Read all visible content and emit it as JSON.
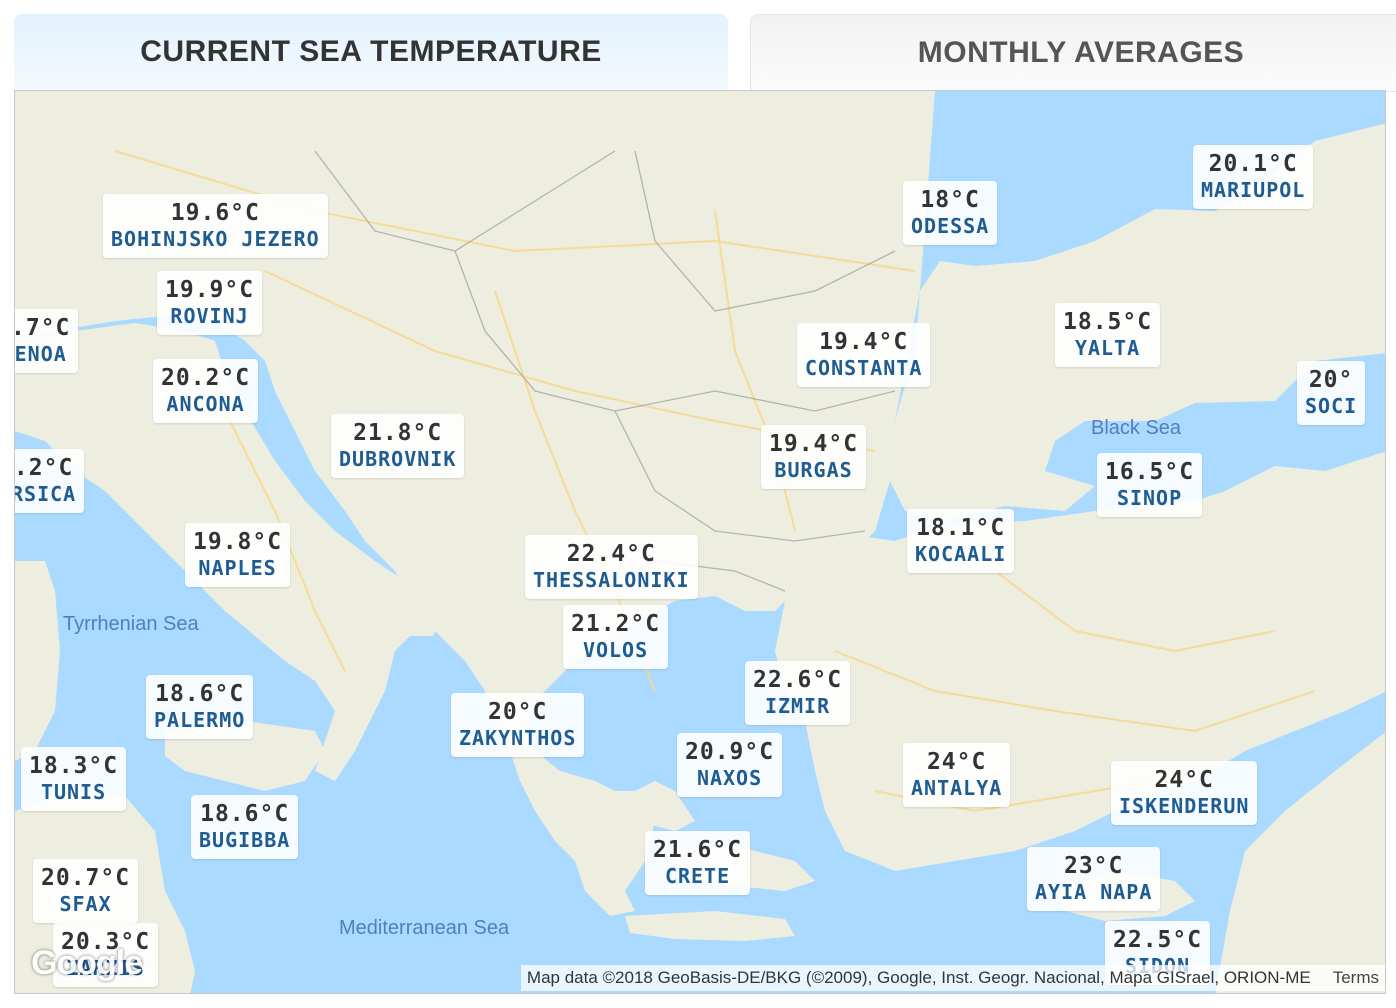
{
  "tabs": {
    "current": "CURRENT SEA TEMPERATURE",
    "monthly": "MONTHLY AVERAGES"
  },
  "map": {
    "sea_labels": {
      "black_sea": "Black Sea",
      "tyrrhenian": "Tyrrhenian Sea",
      "mediterranean": "Mediterranean Sea"
    },
    "markers": [
      {
        "temp": "19.6°C",
        "city": "BOHINJSKO JEZERO"
      },
      {
        "temp": "19.9°C",
        "city": "ROVINJ"
      },
      {
        "temp": "20.2°C",
        "city": "ANCONA"
      },
      {
        "temp": "21.8°C",
        "city": "DUBROVNIK"
      },
      {
        "temp": "19.8°C",
        "city": "NAPLES"
      },
      {
        "temp": "18.6°C",
        "city": "PALERMO"
      },
      {
        "temp": "18.3°C",
        "city": "TUNIS"
      },
      {
        "temp": "18.6°C",
        "city": "BUGIBBA"
      },
      {
        "temp": "20.7°C",
        "city": "SFAX"
      },
      {
        "temp": "20.3°C",
        "city": "ZARZIS"
      },
      {
        "temp": ".7°C",
        "city": "ENOA"
      },
      {
        "temp": ".2°C",
        "city": "RSICA"
      },
      {
        "temp": "22.4°C",
        "city": "THESSALONIKI"
      },
      {
        "temp": "21.2°C",
        "city": "VOLOS"
      },
      {
        "temp": "20°C",
        "city": "ZAKYNTHOS"
      },
      {
        "temp": "20.9°C",
        "city": "NAXOS"
      },
      {
        "temp": "21.6°C",
        "city": "CRETE"
      },
      {
        "temp": "22.6°C",
        "city": "IZMIR"
      },
      {
        "temp": "24°C",
        "city": "ANTALYA"
      },
      {
        "temp": "24°C",
        "city": "ISKENDERUN"
      },
      {
        "temp": "23°C",
        "city": "AYIA NAPA"
      },
      {
        "temp": "22.5°C",
        "city": "SIDON"
      },
      {
        "temp": "18°C",
        "city": "ODESSA"
      },
      {
        "temp": "19.4°C",
        "city": "CONSTANTA"
      },
      {
        "temp": "19.4°C",
        "city": "BURGAS"
      },
      {
        "temp": "18.1°C",
        "city": "KOCAALI"
      },
      {
        "temp": "18.5°C",
        "city": "YALTA"
      },
      {
        "temp": "16.5°C",
        "city": "SINOP"
      },
      {
        "temp": "20.1°C",
        "city": "MARIUPOL"
      },
      {
        "temp": "20°",
        "city": "SOCI"
      }
    ],
    "attribution": "Map data ©2018 GeoBasis-DE/BKG (©2009), Google, Inst. Geogr. Nacional, Mapa GISrael, ORION-ME",
    "terms": "Terms",
    "logo": "Google"
  },
  "colors": {
    "sea": "#aadaff",
    "land": "#edeedf",
    "city_text": "#1f5c92",
    "temp_text": "#333333"
  }
}
